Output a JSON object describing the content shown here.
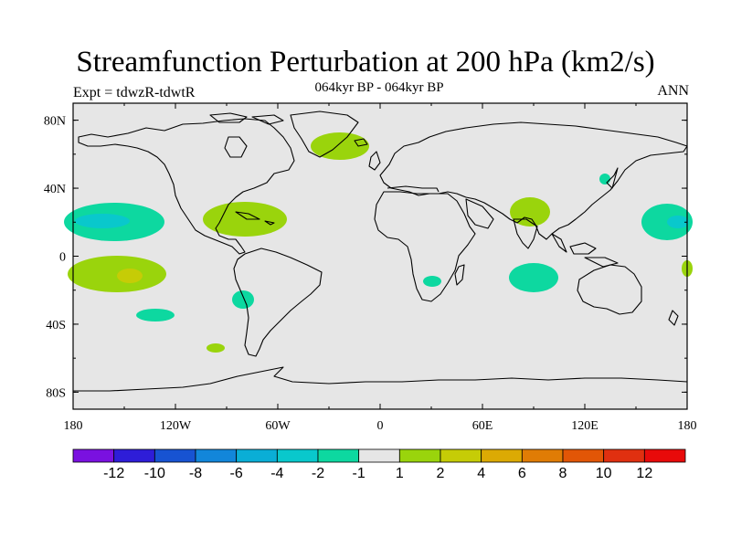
{
  "title": "Streamfunction Perturbation at 200 hPa (km2/s)",
  "subtitle": "064kyr BP - 064kyr BP",
  "left_label": "Expt = tdwzR-tdwtR",
  "right_label": "ANN",
  "map": {
    "projection": "cylindrical equidistant",
    "ocean_land_fill": "#e6e6e6",
    "lat_ticks": [
      "80N",
      "40N",
      "0",
      "40S",
      "80S"
    ],
    "lon_ticks": [
      "180",
      "120W",
      "60W",
      "0",
      "60E",
      "120E",
      "180"
    ]
  },
  "colorbar": {
    "labels": [
      "-12",
      "-10",
      "-8",
      "-6",
      "-4",
      "-2",
      "-1",
      "1",
      "2",
      "4",
      "6",
      "8",
      "10",
      "12"
    ],
    "colors": [
      "#7a11e0",
      "#2e1dd8",
      "#1753d2",
      "#1286da",
      "#0aaed6",
      "#09c8cc",
      "#0dd8a0",
      "#e6e6e6",
      "#9ad40c",
      "#c6cc06",
      "#dcaa04",
      "#e07c05",
      "#e25606",
      "#e03010",
      "#e80a0a"
    ]
  },
  "anomalies": [
    {
      "name": "north-pacific-west",
      "level": "-2",
      "color": "#0dd8a0"
    },
    {
      "name": "north-pacific-core",
      "level": "-4",
      "color": "#09c8cc"
    },
    {
      "name": "south-pacific",
      "level": "2",
      "color": "#9ad40c"
    },
    {
      "name": "south-pacific-core",
      "level": "4",
      "color": "#c6cc06"
    },
    {
      "name": "caribbean",
      "level": "2",
      "color": "#9ad40c"
    },
    {
      "name": "north-atlantic",
      "level": "2",
      "color": "#9ad40c"
    },
    {
      "name": "arabian-sea",
      "level": "2",
      "color": "#9ad40c"
    },
    {
      "name": "indian-ocean",
      "level": "-2",
      "color": "#0dd8a0"
    },
    {
      "name": "south-atlantic",
      "level": "-2",
      "color": "#0dd8a0"
    },
    {
      "name": "south-east-pacific",
      "level": "-2",
      "color": "#0dd8a0"
    },
    {
      "name": "mozambique",
      "level": "-2",
      "color": "#0dd8a0"
    },
    {
      "name": "japan",
      "level": "-2",
      "color": "#0dd8a0"
    },
    {
      "name": "west-pacific-east",
      "level": "-2",
      "color": "#0dd8a0"
    },
    {
      "name": "west-pacific-east-core",
      "level": "-4",
      "color": "#09c8cc"
    },
    {
      "name": "east-pacific-south-edge",
      "level": "2",
      "color": "#9ad40c"
    },
    {
      "name": "south-america-tip",
      "level": "2",
      "color": "#9ad40c"
    }
  ]
}
